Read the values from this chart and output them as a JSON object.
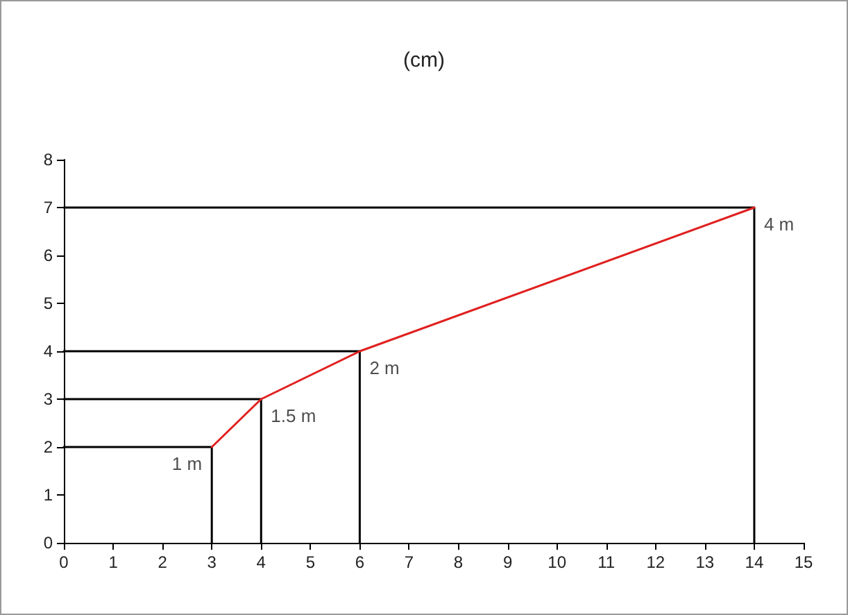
{
  "chart_data": {
    "type": "line",
    "title": "(cm)",
    "xlim": [
      0,
      15
    ],
    "xticks": [
      0,
      1,
      2,
      3,
      4,
      5,
      6,
      7,
      8,
      9,
      10,
      11,
      12,
      13,
      14,
      15
    ],
    "ylim": [
      0,
      8
    ],
    "yticks": [
      0,
      1,
      2,
      3,
      4,
      5,
      6,
      7,
      8
    ],
    "grid": false,
    "marker": "none",
    "line_style": "solid",
    "annotations": [
      {
        "text": "1 m",
        "x": 3,
        "y": 2
      },
      {
        "text": "1.5 m",
        "x": 4,
        "y": 3
      },
      {
        "text": "2 m",
        "x": 6,
        "y": 4
      },
      {
        "text": "4 m",
        "x": 14,
        "y": 7
      }
    ],
    "series": [
      {
        "color": "#000000",
        "x": [
          0,
          3,
          3
        ],
        "values": [
          2,
          2,
          0
        ]
      },
      {
        "color": "#000000",
        "x": [
          0,
          4,
          4
        ],
        "values": [
          3,
          3,
          0
        ]
      },
      {
        "color": "#000000",
        "x": [
          0,
          6,
          6
        ],
        "values": [
          4,
          4,
          0
        ]
      },
      {
        "color": "#000000",
        "x": [
          0,
          14,
          14
        ],
        "values": [
          7,
          7,
          0
        ]
      },
      {
        "color": "#e02020",
        "x": [
          3,
          4,
          6,
          14
        ],
        "values": [
          2,
          3,
          4,
          7
        ]
      }
    ]
  }
}
